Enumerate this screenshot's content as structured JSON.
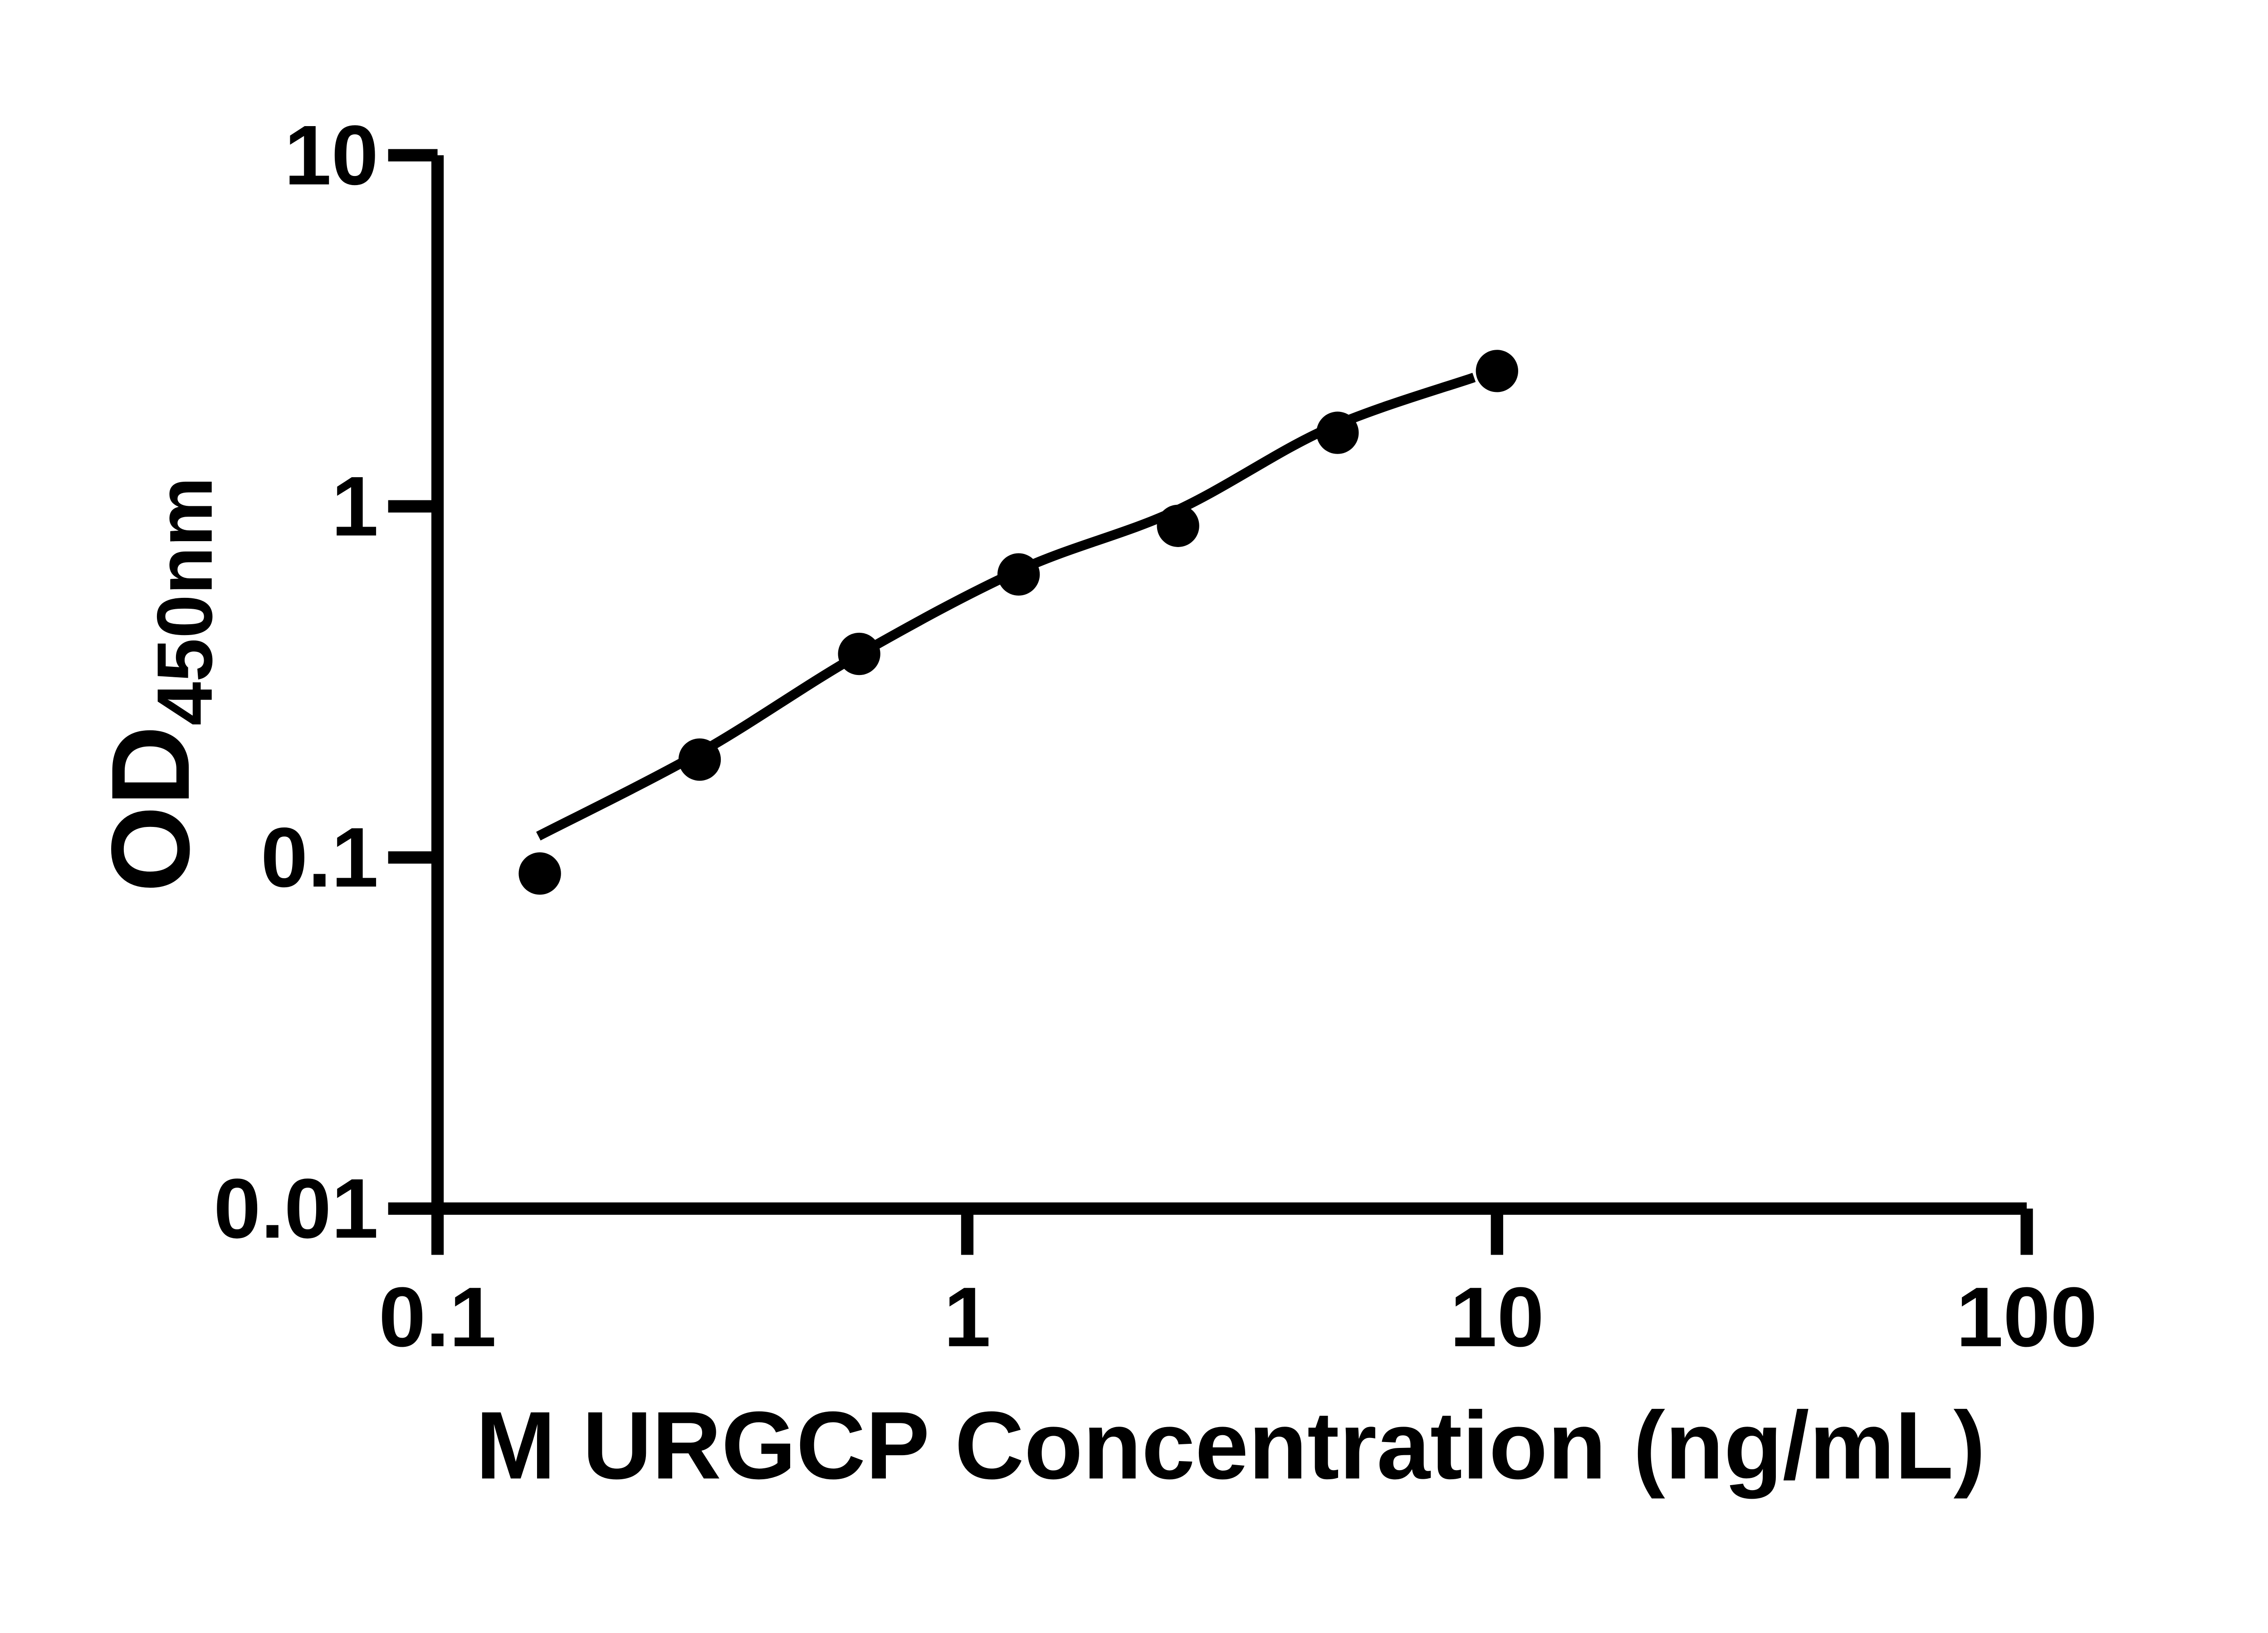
{
  "figure": {
    "background_color": "#ffffff",
    "ink_color": "#000000"
  },
  "chart_data": {
    "type": "scatter",
    "title": "",
    "xlabel": "M URGCP Concentration (ng/mL)",
    "ylabel_main": "OD",
    "ylabel_sub": "450nm",
    "x_scale": "log10",
    "y_scale": "log10",
    "xlim": [
      0.1,
      100
    ],
    "ylim": [
      0.01,
      10
    ],
    "grid": false,
    "legend": "none",
    "x_ticks": [
      {
        "v": 0.1,
        "label": "0.1"
      },
      {
        "v": 1,
        "label": "1"
      },
      {
        "v": 10,
        "label": "10"
      },
      {
        "v": 100,
        "label": "100"
      }
    ],
    "y_ticks": [
      {
        "v": 0.01,
        "label": "0.01"
      },
      {
        "v": 0.1,
        "label": "0.1"
      },
      {
        "v": 1,
        "label": "1"
      },
      {
        "v": 10,
        "label": "10"
      }
    ],
    "series": [
      {
        "marker": "filled-circle",
        "color": "#000000",
        "points": [
          {
            "x": 0.156,
            "y": 0.09
          },
          {
            "x": 0.3125,
            "y": 0.19
          },
          {
            "x": 0.625,
            "y": 0.38
          },
          {
            "x": 1.25,
            "y": 0.64
          },
          {
            "x": 2.5,
            "y": 0.88
          },
          {
            "x": 5,
            "y": 1.62
          },
          {
            "x": 10,
            "y": 2.43
          }
        ]
      }
    ],
    "fit_curve": {
      "color": "#000000",
      "points": [
        {
          "x": 0.155,
          "y": 0.115
        },
        {
          "x": 0.315,
          "y": 0.2
        },
        {
          "x": 0.62,
          "y": 0.376
        },
        {
          "x": 1.26,
          "y": 0.66
        },
        {
          "x": 2.47,
          "y": 0.97
        },
        {
          "x": 4.77,
          "y": 1.66
        },
        {
          "x": 9.05,
          "y": 2.33
        }
      ]
    }
  }
}
